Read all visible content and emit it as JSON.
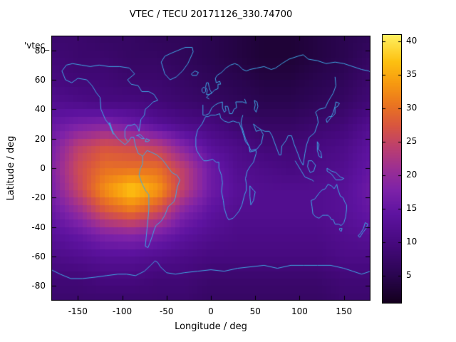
{
  "chart_data": {
    "type": "heatmap",
    "title": "VTEC / TECU 20171126_330.74700",
    "xlabel": "Longitude / deg",
    "ylabel": "Latitude / deg",
    "key_label": "'vtec_",
    "xlim": [
      -180,
      180
    ],
    "ylim": [
      -90,
      90
    ],
    "zlim": [
      1,
      41
    ],
    "x_ticks": [
      -150,
      -100,
      -50,
      0,
      50,
      100,
      150
    ],
    "y_ticks": [
      80,
      60,
      40,
      20,
      0,
      -20,
      -40,
      -60,
      -80
    ],
    "colorbar_ticks": [
      5,
      10,
      15,
      20,
      25,
      30,
      35,
      40
    ],
    "colorbar_position": "right",
    "grid": false,
    "overlay": "world-coastlines",
    "coastline_color": "#3fa9e5",
    "background_color": "#ffffff",
    "lons": [
      -180,
      -150,
      -120,
      -90,
      -60,
      -30,
      0,
      30,
      60,
      90,
      120,
      150,
      180
    ],
    "lats": [
      90,
      75,
      60,
      45,
      30,
      15,
      0,
      -15,
      -30,
      -45,
      -60,
      -75,
      -90
    ],
    "values_tecu": [
      [
        8,
        8,
        7,
        7,
        6,
        6,
        5,
        4,
        3,
        3,
        4,
        5,
        6
      ],
      [
        9,
        8,
        8,
        7,
        7,
        6,
        5,
        4,
        3,
        3,
        4,
        5,
        7
      ],
      [
        10,
        9,
        9,
        8,
        8,
        7,
        6,
        5,
        4,
        4,
        5,
        6,
        8
      ],
      [
        12,
        11,
        10,
        10,
        9,
        8,
        7,
        6,
        5,
        5,
        6,
        7,
        9
      ],
      [
        15,
        17,
        18,
        16,
        13,
        11,
        10,
        8,
        7,
        7,
        8,
        9,
        12
      ],
      [
        17,
        24,
        27,
        26,
        24,
        18,
        13,
        11,
        9,
        9,
        10,
        11,
        14
      ],
      [
        18,
        26,
        30,
        30,
        30,
        24,
        16,
        12,
        11,
        10,
        11,
        12,
        15
      ],
      [
        17,
        25,
        33,
        38,
        34,
        24,
        16,
        13,
        12,
        12,
        12,
        13,
        16
      ],
      [
        15,
        20,
        27,
        30,
        26,
        18,
        14,
        12,
        12,
        12,
        12,
        13,
        15
      ],
      [
        13,
        15,
        18,
        19,
        17,
        14,
        12,
        11,
        11,
        11,
        11,
        12,
        13
      ],
      [
        11,
        12,
        13,
        13,
        12,
        11,
        10,
        10,
        10,
        10,
        10,
        11,
        11
      ],
      [
        9,
        9,
        10,
        10,
        9,
        9,
        8,
        8,
        8,
        8,
        8,
        9,
        9
      ],
      [
        8,
        8,
        8,
        8,
        8,
        8,
        7,
        7,
        7,
        7,
        7,
        8,
        8
      ]
    ],
    "palette_stops": [
      [
        0.0,
        "#14001e"
      ],
      [
        0.1,
        "#2a0550"
      ],
      [
        0.22,
        "#46097e"
      ],
      [
        0.33,
        "#5e13a0"
      ],
      [
        0.42,
        "#7d22a8"
      ],
      [
        0.5,
        "#9c2f93"
      ],
      [
        0.58,
        "#bc3f6f"
      ],
      [
        0.66,
        "#d85540"
      ],
      [
        0.74,
        "#ea7520"
      ],
      [
        0.82,
        "#f79a10"
      ],
      [
        0.9,
        "#fdc010"
      ],
      [
        1.0,
        "#fff060"
      ]
    ]
  }
}
